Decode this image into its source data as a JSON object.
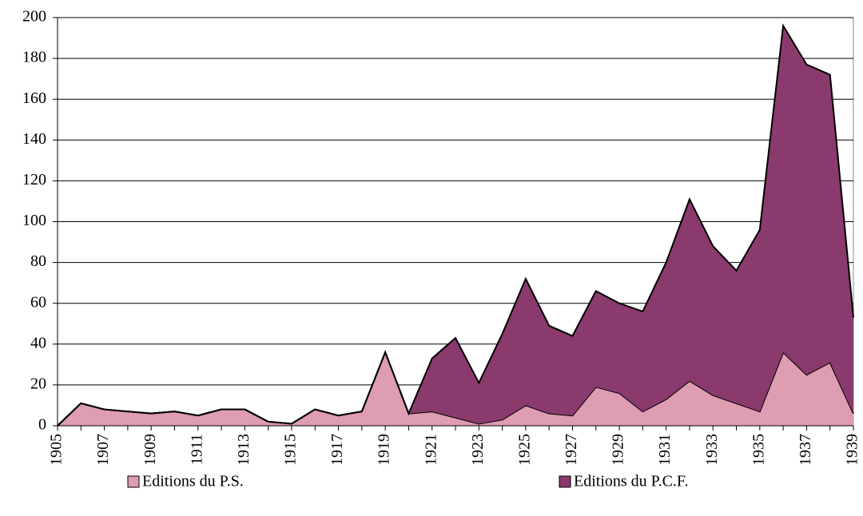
{
  "chart_data": {
    "type": "stacked_area",
    "categories": [
      "1905",
      null,
      "1907",
      null,
      "1909",
      null,
      "1911",
      null,
      "1913",
      null,
      "1915",
      null,
      "1917",
      null,
      "1919",
      null,
      "1921",
      null,
      "1923",
      null,
      "1925",
      null,
      "1927",
      null,
      "1929",
      null,
      "1931",
      null,
      "1933",
      null,
      "1935",
      null,
      "1937",
      null,
      "1939"
    ],
    "series": [
      {
        "name": "Editions du P.S.",
        "color": "#de9db3",
        "values": [
          0,
          11,
          8,
          7,
          6,
          7,
          5,
          8,
          8,
          2,
          1,
          8,
          5,
          7,
          36,
          6,
          7,
          4,
          1,
          3,
          10,
          6,
          5,
          19,
          16,
          7,
          13,
          22,
          15,
          11,
          7,
          36,
          25,
          31,
          6
        ]
      },
      {
        "name": "Editions du P.C.F.",
        "color": "#8a3a6c",
        "values": [
          0,
          0,
          0,
          0,
          0,
          0,
          0,
          0,
          0,
          0,
          0,
          0,
          0,
          0,
          0,
          0,
          26,
          39,
          20,
          42,
          62,
          43,
          39,
          47,
          44,
          49,
          67,
          89,
          73,
          65,
          89,
          160,
          152,
          141,
          47
        ]
      }
    ],
    "ylim": [
      0,
      200
    ],
    "yticks": [
      0,
      20,
      40,
      60,
      80,
      100,
      120,
      140,
      160,
      180,
      200
    ],
    "grid": true,
    "legend": "bottom"
  }
}
